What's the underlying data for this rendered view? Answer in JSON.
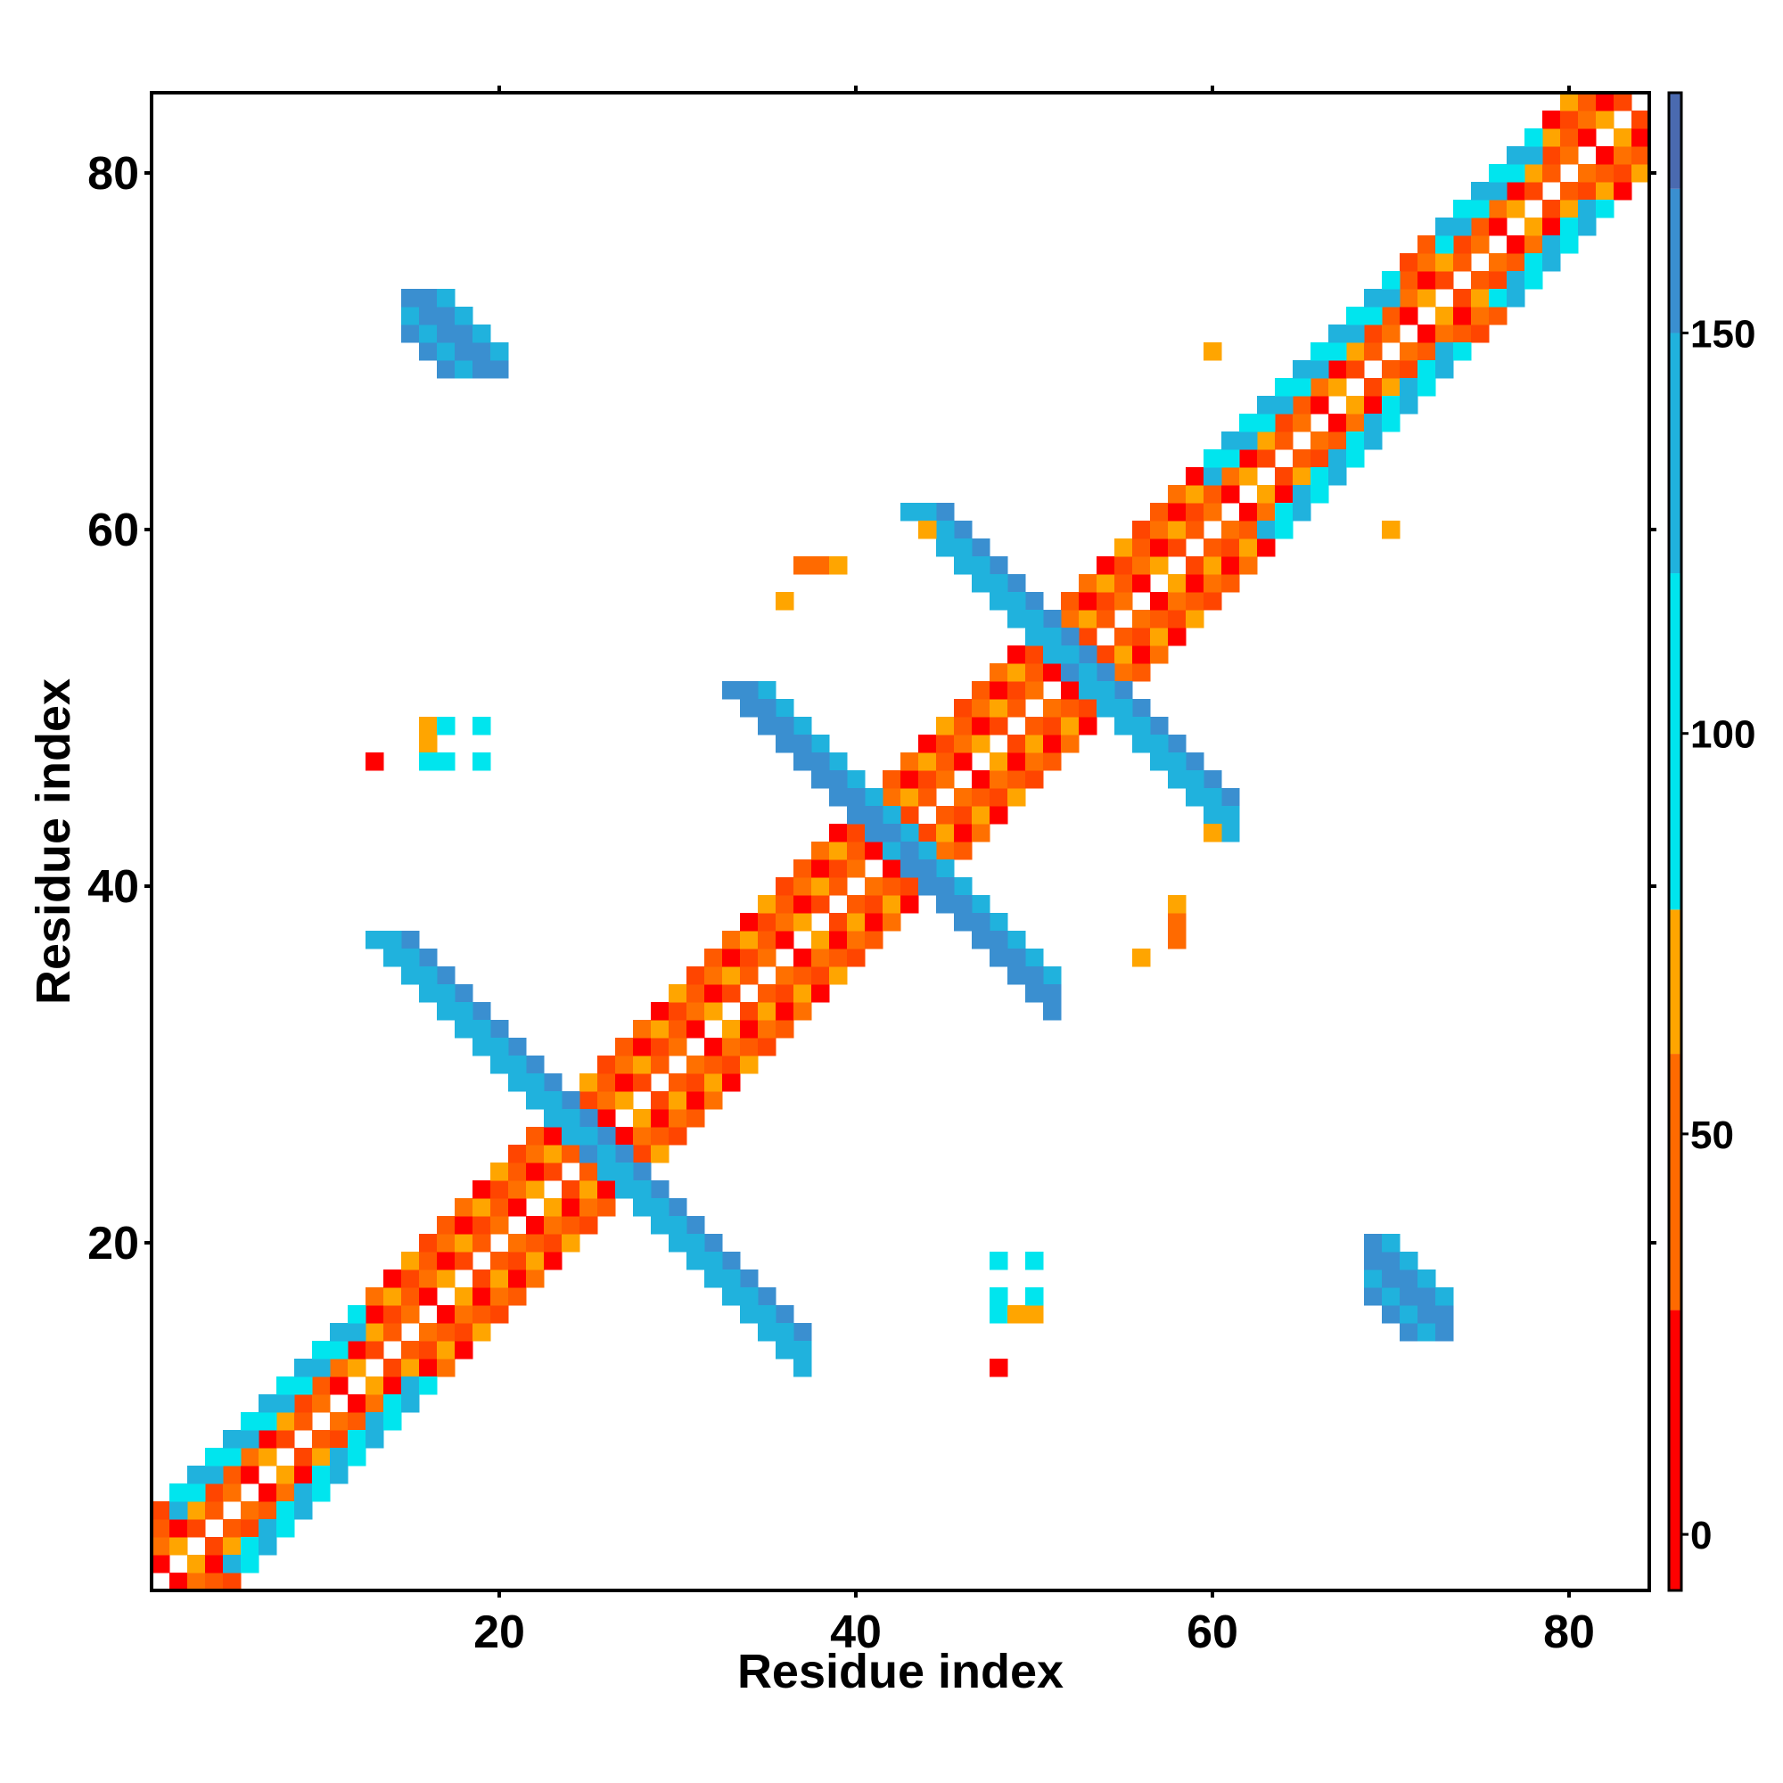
{
  "chart_data": {
    "type": "heatmap",
    "title": "",
    "xlabel": "Residue index",
    "ylabel": "Residue index",
    "xlim": [
      0.5,
      84.5
    ],
    "ylim": [
      0.5,
      84.5
    ],
    "x_ticks": [
      20,
      40,
      60,
      80
    ],
    "y_ticks": [
      20,
      40,
      60,
      80
    ],
    "colorbar": {
      "ticks": [
        0,
        50,
        100,
        150
      ],
      "range": [
        -7,
        180
      ],
      "colors": [
        {
          "from": -7,
          "to": 28,
          "color": "#ff0000"
        },
        {
          "from": 28,
          "to": 60,
          "color": "#ff6a00"
        },
        {
          "from": 60,
          "to": 78,
          "color": "#ffa500"
        },
        {
          "from": 78,
          "to": 120,
          "color": "#00e5ee"
        },
        {
          "from": 120,
          "to": 150,
          "color": "#20b2dd"
        },
        {
          "from": 150,
          "to": 168,
          "color": "#3a8fd0"
        },
        {
          "from": 168,
          "to": 180,
          "color": "#4a6ab0"
        }
      ]
    },
    "grid": false,
    "legend": "colorbar-right",
    "diagonal_band": {
      "description_colors": [
        "#ff0000",
        "#ff4500",
        "#ff7000",
        "#ffa500",
        "#00e5ee"
      ],
      "offsets": [
        1,
        2,
        3,
        4
      ]
    },
    "cells": [
      {
        "x": [
          15,
          20
        ],
        "y": [
          69,
          73
        ],
        "color": "#3a8fd0"
      },
      {
        "x": [
          44,
          51
        ],
        "y": [
          54,
          62
        ],
        "color": "#3a8fd0"
      },
      {
        "x": [
          32,
          41
        ],
        "y": [
          43,
          52
        ],
        "color": "#20b2dd"
      },
      {
        "x": [
          41,
          51
        ],
        "y": [
          31,
          41
        ],
        "color": "#3a8fd0"
      },
      {
        "x": [
          12,
          25
        ],
        "y": [
          25,
          37
        ],
        "color": "#3a8fd0"
      },
      {
        "x": [
          25,
          37
        ],
        "y": [
          12,
          25
        ],
        "color": "#3a8fd0"
      },
      {
        "x": [
          53,
          61
        ],
        "y": [
          44,
          51
        ],
        "color": "#3a8fd0"
      },
      {
        "x": [
          69,
          73
        ],
        "y": [
          14,
          20
        ],
        "color": "#3a8fd0"
      },
      {
        "x": [
          61,
          70
        ],
        "y": [
          61,
          70
        ],
        "color": "#ff7000"
      }
    ],
    "scattered_points": [
      {
        "x": 13,
        "y": 47,
        "value": 20
      },
      {
        "x": 16,
        "y": 48,
        "value": 70
      },
      {
        "x": 16,
        "y": 49,
        "value": 70
      },
      {
        "x": 17,
        "y": 49,
        "value": 95
      },
      {
        "x": 19,
        "y": 49,
        "value": 95
      },
      {
        "x": 16,
        "y": 47,
        "value": 95
      },
      {
        "x": 17,
        "y": 47,
        "value": 95
      },
      {
        "x": 19,
        "y": 47,
        "value": 95
      },
      {
        "x": 36,
        "y": 56,
        "value": 70
      },
      {
        "x": 37,
        "y": 58,
        "value": 40
      },
      {
        "x": 38,
        "y": 58,
        "value": 40
      },
      {
        "x": 39,
        "y": 58,
        "value": 70
      },
      {
        "x": 44,
        "y": 60,
        "value": 70
      },
      {
        "x": 48,
        "y": 13,
        "value": 20
      },
      {
        "x": 48,
        "y": 16,
        "value": 95
      },
      {
        "x": 49,
        "y": 16,
        "value": 70
      },
      {
        "x": 50,
        "y": 16,
        "value": 70
      },
      {
        "x": 48,
        "y": 17,
        "value": 95
      },
      {
        "x": 50,
        "y": 17,
        "value": 95
      },
      {
        "x": 48,
        "y": 19,
        "value": 95
      },
      {
        "x": 50,
        "y": 19,
        "value": 95
      },
      {
        "x": 56,
        "y": 36,
        "value": 70
      },
      {
        "x": 58,
        "y": 37,
        "value": 40
      },
      {
        "x": 58,
        "y": 38,
        "value": 40
      },
      {
        "x": 58,
        "y": 39,
        "value": 70
      },
      {
        "x": 60,
        "y": 43,
        "value": 70
      },
      {
        "x": 60,
        "y": 70,
        "value": 70
      },
      {
        "x": 70,
        "y": 60,
        "value": 70
      }
    ]
  }
}
